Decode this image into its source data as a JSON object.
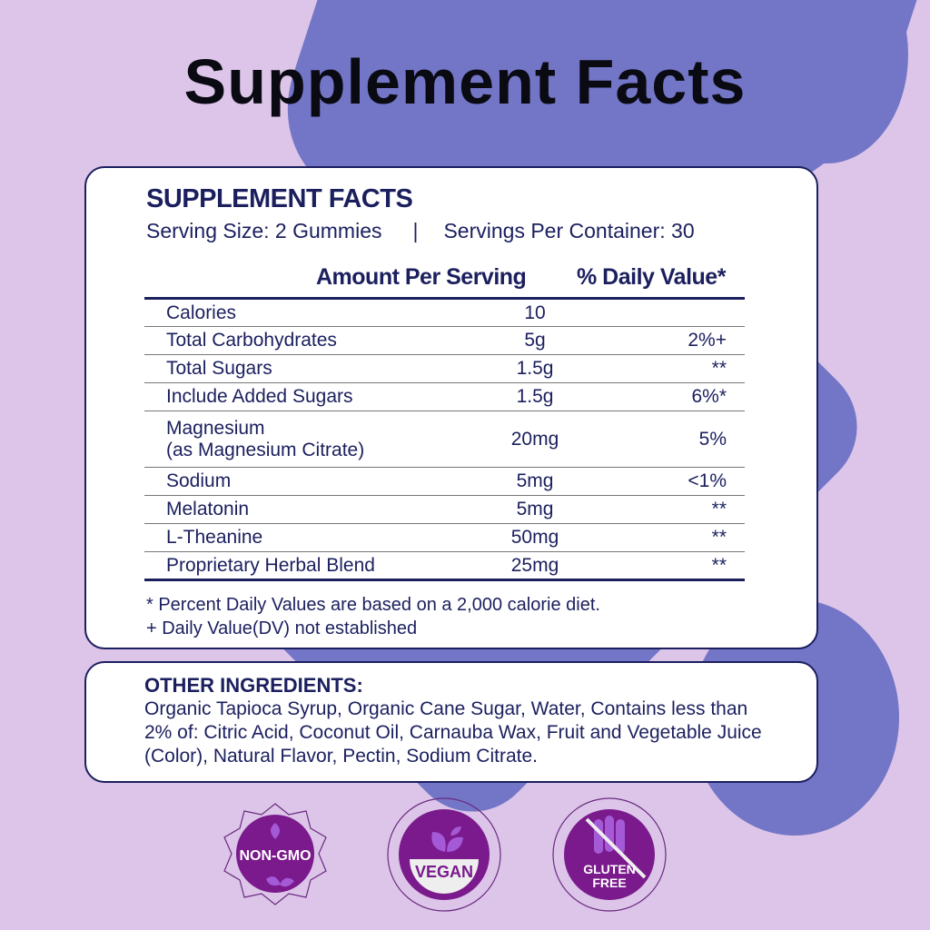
{
  "title": "Supplement Facts",
  "panel": {
    "heading": "SUPPLEMENT FACTS",
    "serving_size": "Serving Size: 2 Gummies",
    "separator": "|",
    "servings_per_container": "Servings Per Container: 30",
    "col_amount": "Amount Per Serving",
    "col_dv": "% Daily Value*",
    "rows": [
      {
        "name": "Calories",
        "sub": "",
        "amount": "10",
        "dv": ""
      },
      {
        "name": "Total Carbohydrates",
        "sub": "",
        "amount": "5g",
        "dv": "2%+"
      },
      {
        "name": "Total Sugars",
        "sub": "",
        "amount": "1.5g",
        "dv": "**"
      },
      {
        "name": "Include Added Sugars",
        "sub": "",
        "amount": "1.5g",
        "dv": "6%*"
      },
      {
        "name": "Magnesium",
        "sub": "(as Magnesium Citrate)",
        "amount": "20mg",
        "dv": "5%"
      },
      {
        "name": "Sodium",
        "sub": "",
        "amount": "5mg",
        "dv": "<1%"
      },
      {
        "name": "Melatonin",
        "sub": "",
        "amount": "5mg",
        "dv": "**"
      },
      {
        "name": "L-Theanine",
        "sub": "",
        "amount": "50mg",
        "dv": "**"
      },
      {
        "name": "Proprietary Herbal Blend",
        "sub": "",
        "amount": "25mg",
        "dv": "**"
      }
    ],
    "footnote1": "* Percent Daily Values are based on a 2,000 calorie diet.",
    "footnote2": "+ Daily Value(DV) not established"
  },
  "other": {
    "heading": "OTHER INGREDIENTS:",
    "text": "Organic Tapioca Syrup, Organic Cane Sugar, Water, Contains less than 2% of: Citric Acid, Coconut Oil, Carnauba Wax, Fruit and Vegetable Juice (Color), Natural Flavor, Pectin, Sodium Citrate."
  },
  "badges": [
    {
      "label": "NON-GMO",
      "icon": "leaf-icon"
    },
    {
      "label": "VEGAN",
      "icon": "leaf-icon"
    },
    {
      "label1": "GLUTEN",
      "label2": "FREE",
      "icon": "wheat-crossed-icon"
    }
  ],
  "colors": {
    "background": "#dcc5e8",
    "shape": "#7375c6",
    "text": "#1b1f5e",
    "badge": "#7a1a8c"
  }
}
